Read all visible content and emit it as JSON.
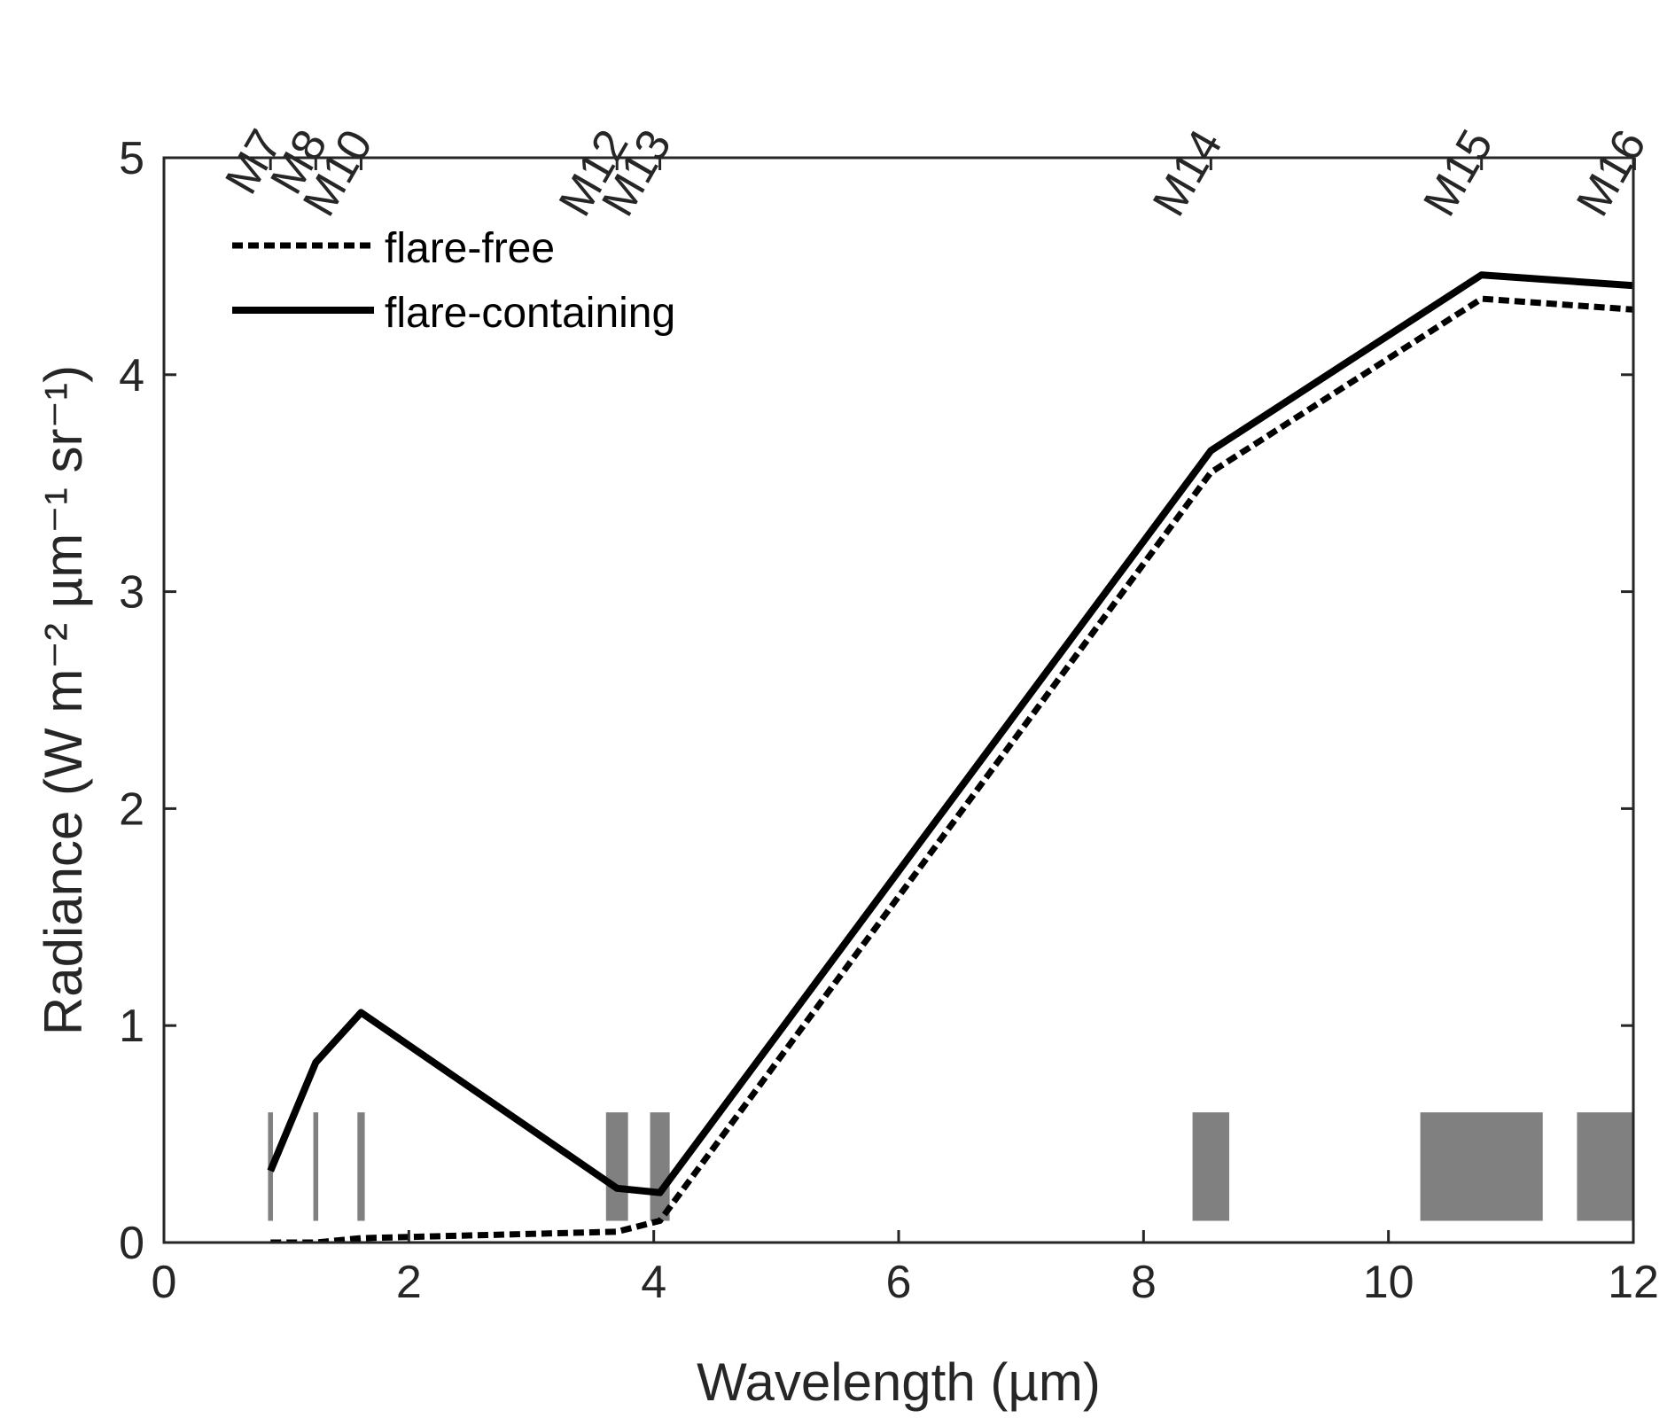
{
  "chart_data": {
    "type": "line",
    "title": "",
    "xlabel": "Wavelength (µm)",
    "ylabel": "Radiance (W m⁻² µm⁻¹ sr⁻¹)",
    "xlim": [
      0,
      12
    ],
    "ylim": [
      0,
      5
    ],
    "x_ticks": [
      0,
      2,
      4,
      6,
      8,
      10,
      12
    ],
    "y_ticks": [
      0,
      1,
      2,
      3,
      4,
      5
    ],
    "grid": false,
    "legend_position": "top-left",
    "band_labels_axis": "top",
    "series": [
      {
        "name": "flare-free",
        "style": "dashed",
        "color": "#000000",
        "points": [
          {
            "x": 0.87,
            "y": 0.0
          },
          {
            "x": 1.24,
            "y": 0.0
          },
          {
            "x": 1.61,
            "y": 0.02
          },
          {
            "x": 3.7,
            "y": 0.05
          },
          {
            "x": 4.05,
            "y": 0.1
          },
          {
            "x": 8.55,
            "y": 3.55
          },
          {
            "x": 10.76,
            "y": 4.35
          },
          {
            "x": 12.01,
            "y": 4.3
          }
        ]
      },
      {
        "name": "flare-containing",
        "style": "solid",
        "color": "#000000",
        "points": [
          {
            "x": 0.87,
            "y": 0.33
          },
          {
            "x": 1.24,
            "y": 0.83
          },
          {
            "x": 1.61,
            "y": 1.06
          },
          {
            "x": 3.7,
            "y": 0.25
          },
          {
            "x": 4.05,
            "y": 0.23
          },
          {
            "x": 8.55,
            "y": 3.65
          },
          {
            "x": 10.76,
            "y": 4.46
          },
          {
            "x": 12.01,
            "y": 4.41
          }
        ]
      }
    ],
    "bands": [
      {
        "label": "M7",
        "x_start": 0.85,
        "x_end": 0.89,
        "label_x": 0.87
      },
      {
        "label": "M8",
        "x_start": 1.22,
        "x_end": 1.26,
        "label_x": 1.24
      },
      {
        "label": "M10",
        "x_start": 1.58,
        "x_end": 1.64,
        "label_x": 1.61
      },
      {
        "label": "M12",
        "x_start": 3.61,
        "x_end": 3.79,
        "label_x": 3.7
      },
      {
        "label": "M13",
        "x_start": 3.97,
        "x_end": 4.13,
        "label_x": 4.05
      },
      {
        "label": "M14",
        "x_start": 8.4,
        "x_end": 8.7,
        "label_x": 8.55
      },
      {
        "label": "M15",
        "x_start": 10.26,
        "x_end": 11.26,
        "label_x": 10.76
      },
      {
        "label": "M16",
        "x_start": 11.54,
        "x_end": 12.49,
        "label_x": 12.01
      }
    ],
    "band_height": 0.5,
    "band_base": 0.1,
    "band_color": "#808080"
  }
}
